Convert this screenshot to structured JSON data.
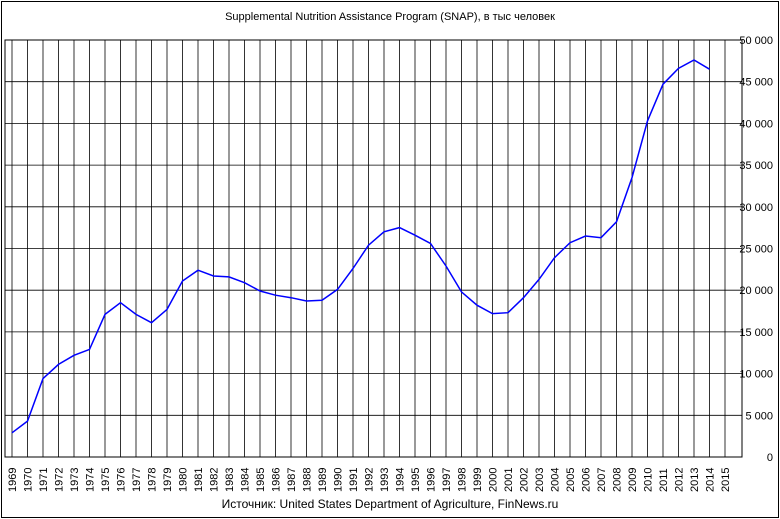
{
  "chart_data": {
    "type": "line",
    "title": "Supplemental Nutrition Assistance Program (SNAP), в тыс человек",
    "source": "Источник: United States Department of Agriculture, FinNews.ru",
    "xlabel": "",
    "ylabel": "",
    "ylim": [
      0,
      50000
    ],
    "ytick_labels": [
      "0",
      "5 000",
      "10 000",
      "15 000",
      "20 000",
      "25 000",
      "30 000",
      "35 000",
      "40 000",
      "45 000",
      "50 000"
    ],
    "xtick_labels": [
      "1969",
      "1970",
      "1971",
      "1972",
      "1973",
      "1974",
      "1975",
      "1976",
      "1977",
      "1978",
      "1979",
      "1980",
      "1981",
      "1982",
      "1983",
      "1984",
      "1985",
      "1986",
      "1987",
      "1988",
      "1989",
      "1990",
      "1991",
      "1992",
      "1993",
      "1994",
      "1995",
      "1996",
      "1997",
      "1998",
      "1999",
      "2000",
      "2001",
      "2002",
      "2003",
      "2004",
      "2005",
      "2006",
      "2007",
      "2008",
      "2009",
      "2010",
      "2011",
      "2012",
      "2013",
      "2014",
      "2015"
    ],
    "grid": true,
    "line_color": "#0000ff",
    "series": [
      {
        "x": [
          1969,
          1970,
          1971,
          1972,
          1973,
          1974,
          1975,
          1976,
          1977,
          1978,
          1979,
          1980,
          1981,
          1982,
          1983,
          1984,
          1985,
          1986,
          1987,
          1988,
          1989,
          1990,
          1991,
          1992,
          1993,
          1994,
          1995,
          1996,
          1997,
          1998,
          1999,
          2000,
          2001,
          2002,
          2003,
          2004,
          2005,
          2006,
          2007,
          2008,
          2009,
          2010,
          2011,
          2012,
          2013,
          2014
        ],
        "values": [
          2900,
          4300,
          9400,
          11100,
          12200,
          12900,
          17100,
          18500,
          17100,
          16100,
          17700,
          21100,
          22400,
          21700,
          21600,
          20900,
          19900,
          19400,
          19100,
          18700,
          18800,
          20100,
          22600,
          25400,
          27000,
          27500,
          26600,
          25600,
          22900,
          19800,
          18200,
          17200,
          17300,
          19100,
          21300,
          23900,
          25700,
          26500,
          26300,
          28200,
          33500,
          40300,
          44700,
          46600,
          47600,
          46500
        ]
      }
    ]
  }
}
